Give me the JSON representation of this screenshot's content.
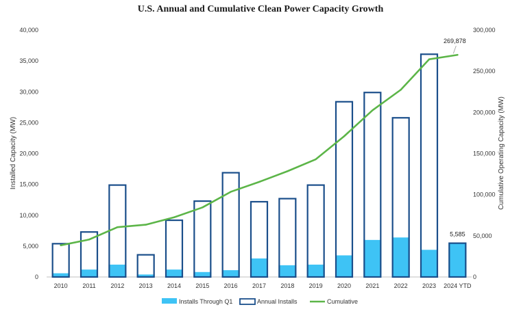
{
  "chart_data": {
    "type": "bar",
    "title": "U.S. Annual and Cumulative Clean Power Capacity Growth",
    "categories": [
      "2010",
      "2011",
      "2012",
      "2013",
      "2014",
      "2015",
      "2016",
      "2017",
      "2018",
      "2019",
      "2020",
      "2021",
      "2022",
      "2023",
      "2024 YTD"
    ],
    "series": [
      {
        "name": "Installs Through Q1",
        "kind": "bar-filled",
        "axis": "left",
        "color": "#3ec3f5",
        "values": [
          600,
          1200,
          2000,
          400,
          1200,
          800,
          1100,
          3000,
          1900,
          2000,
          3500,
          6000,
          6400,
          4400,
          5585
        ]
      },
      {
        "name": "Annual Installs",
        "kind": "bar-outline",
        "axis": "left",
        "color": "#1a4e8a",
        "values": [
          5500,
          7400,
          15000,
          3700,
          9300,
          12400,
          17000,
          12300,
          12800,
          15000,
          28500,
          30000,
          25900,
          36200,
          5585
        ]
      },
      {
        "name": "Cumulative",
        "kind": "line",
        "axis": "right",
        "color": "#5cb548",
        "values": [
          38500,
          45500,
          60500,
          63500,
          72500,
          84500,
          103500,
          115500,
          128500,
          143000,
          171000,
          202500,
          227500,
          264500,
          269878
        ]
      }
    ],
    "y_left": {
      "label": "Installed Capacity (MW)",
      "min": 0,
      "max": 40000,
      "ticks": [
        "0",
        "5,000",
        "10,000",
        "15,000",
        "20,000",
        "25,000",
        "30,000",
        "35,000",
        "40,000"
      ],
      "tick_values": [
        0,
        5000,
        10000,
        15000,
        20000,
        25000,
        30000,
        35000,
        40000
      ]
    },
    "y_right": {
      "label": "Cumulative Operating Capacity (MW)",
      "min": 0,
      "max": 300000,
      "ticks": [
        "0",
        "50,000",
        "100,000",
        "150,000",
        "200,000",
        "250,000",
        "300,000"
      ],
      "tick_values": [
        0,
        50000,
        100000,
        150000,
        200000,
        250000,
        300000
      ]
    },
    "annotations": [
      {
        "text": "269,878",
        "series": "Cumulative",
        "index": 14,
        "value": 269878
      },
      {
        "text": "5,585",
        "series": "Annual Installs",
        "index": 14,
        "value": 5585
      }
    ],
    "legend": {
      "position": "bottom",
      "items": [
        "Installs Through Q1",
        "Annual Installs",
        "Cumulative"
      ]
    },
    "grid": false
  }
}
